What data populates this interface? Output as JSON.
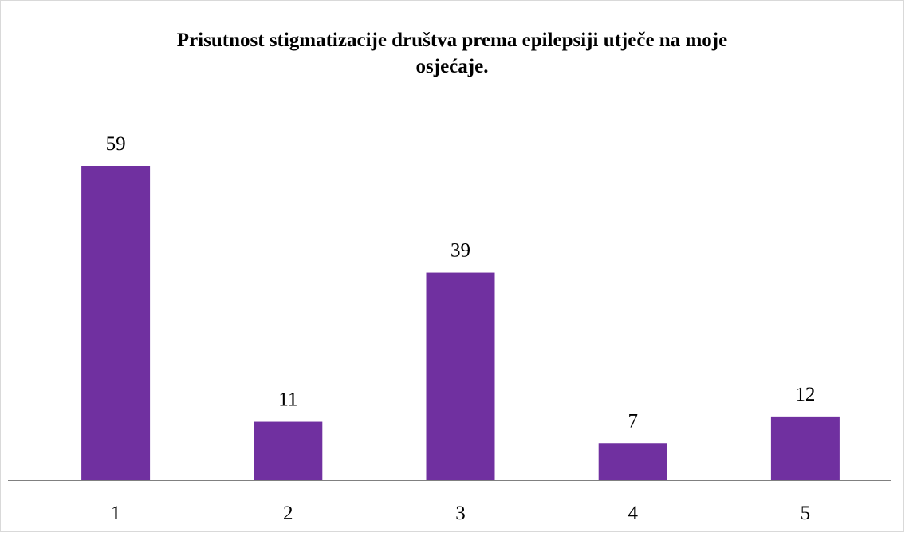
{
  "chart_data": {
    "type": "bar",
    "title": "Prisutnost stigmatizacije društva prema epilepsiji utječe na moje osjećaje.",
    "categories": [
      "1",
      "2",
      "3",
      "4",
      "5"
    ],
    "values": [
      59,
      11,
      39,
      7,
      12
    ],
    "color": "#7030a0"
  }
}
